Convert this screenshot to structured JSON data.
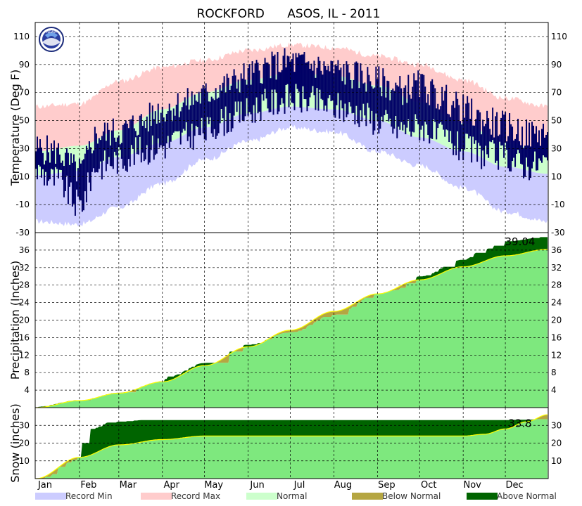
{
  "title": "ROCKFORD      ASOS, IL - 2011",
  "logo_text": "NOAA",
  "months": [
    "Jan",
    "Feb",
    "Mar",
    "Apr",
    "May",
    "Jun",
    "Jul",
    "Aug",
    "Sep",
    "Oct",
    "Nov",
    "Dec"
  ],
  "legend": [
    {
      "label": "Record Min",
      "color": "#ccccff"
    },
    {
      "label": "Record Max",
      "color": "#ffcccc"
    },
    {
      "label": "Normal",
      "color": "#ccffcc"
    },
    {
      "label": "Below Normal",
      "color": "#b5a642"
    },
    {
      "label": "Above Normal",
      "color": "#006400"
    }
  ],
  "colors": {
    "record_min": "#ccccff",
    "record_max": "#ffcccc",
    "normal_band": "#ccffcc",
    "observed": "#000066",
    "normal_fill": "#7ee87e",
    "above": "#006400",
    "below": "#b5a642",
    "normal_line": "#ffff00",
    "grid": "#000000"
  },
  "chart_data": [
    {
      "type": "bar",
      "name": "temperature",
      "ylabel": "Temperature (Deg F)",
      "ylim": [
        -30,
        120
      ],
      "yticks": [
        -30,
        -10,
        10,
        30,
        50,
        70,
        90,
        110
      ],
      "grid": true,
      "x_unit": "day of year",
      "normal_high_anchor": [
        [
          1,
          28
        ],
        [
          32,
          32
        ],
        [
          60,
          43
        ],
        [
          91,
          58
        ],
        [
          121,
          70
        ],
        [
          152,
          79
        ],
        [
          182,
          84
        ],
        [
          213,
          82
        ],
        [
          244,
          75
        ],
        [
          274,
          63
        ],
        [
          305,
          48
        ],
        [
          335,
          34
        ],
        [
          365,
          28
        ]
      ],
      "normal_low_anchor": [
        [
          1,
          11
        ],
        [
          32,
          14
        ],
        [
          60,
          24
        ],
        [
          91,
          34
        ],
        [
          121,
          45
        ],
        [
          152,
          55
        ],
        [
          182,
          60
        ],
        [
          213,
          58
        ],
        [
          244,
          50
        ],
        [
          274,
          38
        ],
        [
          305,
          28
        ],
        [
          335,
          17
        ],
        [
          365,
          12
        ]
      ],
      "record_high_anchor": [
        [
          1,
          60
        ],
        [
          32,
          62
        ],
        [
          60,
          78
        ],
        [
          91,
          88
        ],
        [
          121,
          93
        ],
        [
          152,
          100
        ],
        [
          182,
          104
        ],
        [
          213,
          102
        ],
        [
          244,
          96
        ],
        [
          274,
          90
        ],
        [
          305,
          79
        ],
        [
          335,
          66
        ],
        [
          365,
          60
        ]
      ],
      "record_low_anchor": [
        [
          1,
          -22
        ],
        [
          32,
          -24
        ],
        [
          60,
          -12
        ],
        [
          91,
          5
        ],
        [
          121,
          22
        ],
        [
          152,
          35
        ],
        [
          182,
          45
        ],
        [
          213,
          42
        ],
        [
          244,
          28
        ],
        [
          274,
          18
        ],
        [
          305,
          2
        ],
        [
          335,
          -15
        ],
        [
          365,
          -22
        ]
      ],
      "observed_high_anchor": [
        [
          1,
          30
        ],
        [
          15,
          28
        ],
        [
          32,
          14
        ],
        [
          45,
          40
        ],
        [
          60,
          42
        ],
        [
          75,
          48
        ],
        [
          91,
          58
        ],
        [
          105,
          62
        ],
        [
          121,
          68
        ],
        [
          135,
          75
        ],
        [
          152,
          82
        ],
        [
          165,
          88
        ],
        [
          182,
          92
        ],
        [
          195,
          90
        ],
        [
          213,
          86
        ],
        [
          230,
          82
        ],
        [
          244,
          78
        ],
        [
          260,
          72
        ],
        [
          274,
          75
        ],
        [
          290,
          66
        ],
        [
          305,
          58
        ],
        [
          320,
          50
        ],
        [
          335,
          46
        ],
        [
          350,
          40
        ],
        [
          365,
          42
        ]
      ],
      "observed_low_anchor": [
        [
          1,
          14
        ],
        [
          15,
          8
        ],
        [
          32,
          -10
        ],
        [
          45,
          18
        ],
        [
          60,
          22
        ],
        [
          75,
          28
        ],
        [
          91,
          32
        ],
        [
          105,
          38
        ],
        [
          121,
          42
        ],
        [
          135,
          50
        ],
        [
          152,
          56
        ],
        [
          165,
          62
        ],
        [
          182,
          66
        ],
        [
          195,
          64
        ],
        [
          213,
          60
        ],
        [
          230,
          56
        ],
        [
          244,
          50
        ],
        [
          260,
          44
        ],
        [
          274,
          46
        ],
        [
          290,
          38
        ],
        [
          305,
          30
        ],
        [
          320,
          26
        ],
        [
          335,
          24
        ],
        [
          350,
          18
        ],
        [
          365,
          20
        ]
      ]
    },
    {
      "type": "area",
      "name": "precipitation",
      "ylabel": "Precipitation (Inches)",
      "ylim": [
        0,
        40
      ],
      "yticks": [
        4,
        8,
        12,
        16,
        20,
        24,
        28,
        32,
        36
      ],
      "grid": true,
      "annotation": "39.04",
      "normal_anchor": [
        [
          1,
          0
        ],
        [
          32,
          1.6
        ],
        [
          60,
          3.3
        ],
        [
          91,
          5.9
        ],
        [
          121,
          9.6
        ],
        [
          152,
          13.9
        ],
        [
          182,
          17.7
        ],
        [
          213,
          22.0
        ],
        [
          244,
          26.0
        ],
        [
          274,
          29.2
        ],
        [
          305,
          32.2
        ],
        [
          335,
          34.7
        ],
        [
          365,
          36.2
        ]
      ],
      "observed_anchor": [
        [
          1,
          0.2
        ],
        [
          32,
          1.7
        ],
        [
          60,
          3.4
        ],
        [
          91,
          6.0
        ],
        [
          95,
          7.1
        ],
        [
          121,
          10.2
        ],
        [
          152,
          14.4
        ],
        [
          182,
          17.2
        ],
        [
          213,
          21.2
        ],
        [
          244,
          26.0
        ],
        [
          256,
          26.8
        ],
        [
          274,
          30.0
        ],
        [
          305,
          33.8
        ],
        [
          320,
          36.2
        ],
        [
          335,
          38.0
        ],
        [
          365,
          39.04
        ]
      ]
    },
    {
      "type": "area",
      "name": "snow",
      "ylabel": "Snow (inches)",
      "ylim": [
        0,
        40
      ],
      "yticks": [
        10,
        20,
        30
      ],
      "grid": true,
      "annotation": "33.8",
      "normal_anchor": [
        [
          1,
          0
        ],
        [
          32,
          12
        ],
        [
          60,
          19
        ],
        [
          91,
          22
        ],
        [
          121,
          24
        ],
        [
          152,
          24
        ],
        [
          182,
          24
        ],
        [
          213,
          24
        ],
        [
          244,
          24
        ],
        [
          274,
          24
        ],
        [
          305,
          24
        ],
        [
          320,
          25
        ],
        [
          335,
          28
        ],
        [
          350,
          32
        ],
        [
          365,
          36
        ]
      ],
      "observed_anchor": [
        [
          1,
          0
        ],
        [
          10,
          1
        ],
        [
          20,
          8
        ],
        [
          30,
          11
        ],
        [
          35,
          21
        ],
        [
          40,
          28
        ],
        [
          55,
          32
        ],
        [
          80,
          33
        ],
        [
          320,
          33
        ],
        [
          335,
          33
        ],
        [
          350,
          33.2
        ],
        [
          365,
          33.8
        ]
      ]
    }
  ]
}
